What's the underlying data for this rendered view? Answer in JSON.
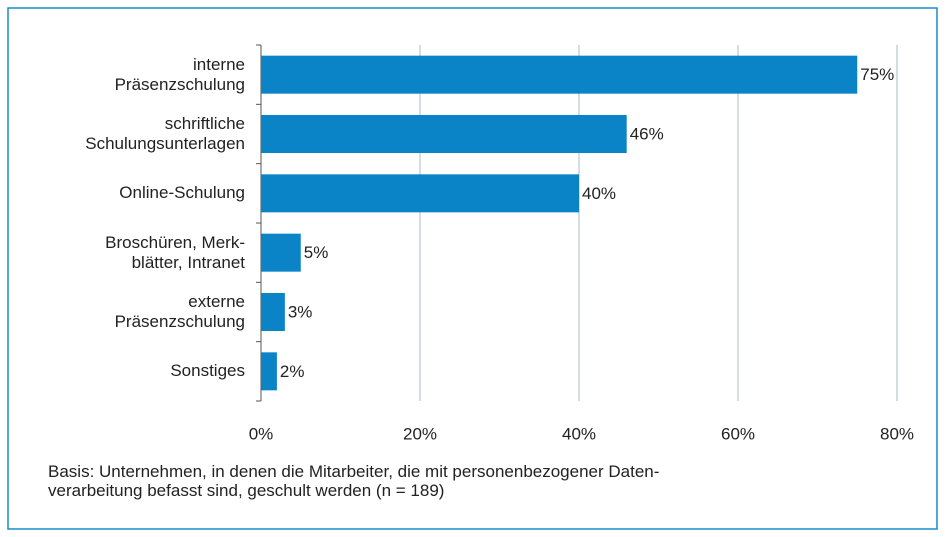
{
  "chart_data": {
    "type": "bar",
    "orientation": "horizontal",
    "categories": [
      "interne\nPräsenzschulung",
      "schriftliche\nSchulungsunterlagen",
      "Online-Schulung",
      "Broschüren, Merk-\nblätter, Intranet",
      "externe\nPräsenzschulung",
      "Sonstiges"
    ],
    "values": [
      75,
      46,
      40,
      5,
      3,
      2
    ],
    "value_labels": [
      "75%",
      "46%",
      "40%",
      "5%",
      "3%",
      "2%"
    ],
    "color": "#0a84c6",
    "xlim": [
      0,
      80
    ],
    "xticks": [
      {
        "value": 0,
        "label": "0%"
      },
      {
        "value": 20,
        "label": "20%"
      },
      {
        "value": 40,
        "label": "40%"
      },
      {
        "value": 60,
        "label": "60%"
      },
      {
        "value": 80,
        "label": "80%"
      }
    ],
    "grid": true,
    "note": "Basis: Unternehmen, in denen die Mitarbeiter, die mit personenbezogener Daten-\nverarbeitung befasst sind, geschult werden (n = 189)"
  }
}
